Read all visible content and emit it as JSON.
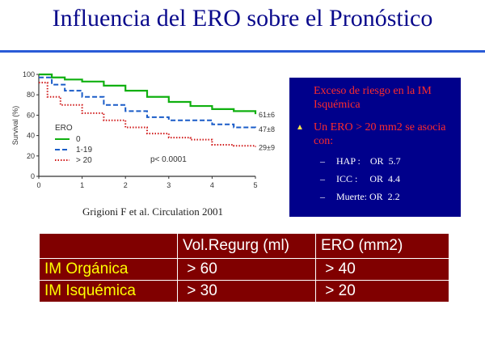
{
  "slide": {
    "title": "Influencia del ERO sobre el Pronóstico",
    "citation": "Grigioni F et al. Circulation 2001"
  },
  "chart_data": {
    "type": "line",
    "ylabel": "Survival (%)",
    "yticks": [
      "100",
      "80",
      "60",
      "40",
      "20",
      "0"
    ],
    "xticks": [
      "0",
      "1",
      "2",
      "3",
      "4",
      "5"
    ],
    "xlim": [
      0,
      5
    ],
    "ylim": [
      0,
      100
    ],
    "legend_title": "ERO",
    "pvalue_label": "p< 0.0001",
    "series": [
      {
        "name": "0",
        "style": "solid",
        "color": "#10b010",
        "end_label": "61±6",
        "points": [
          [
            0,
            100
          ],
          [
            0.3,
            97
          ],
          [
            0.6,
            95
          ],
          [
            1,
            93
          ],
          [
            1.5,
            89
          ],
          [
            2,
            84
          ],
          [
            2.5,
            78
          ],
          [
            3,
            73
          ],
          [
            3.5,
            69
          ],
          [
            4,
            66
          ],
          [
            4.5,
            64
          ],
          [
            5,
            61
          ]
        ]
      },
      {
        "name": "1-19",
        "style": "dashed",
        "color": "#1a5cc8",
        "end_label": "47±8",
        "points": [
          [
            0,
            97
          ],
          [
            0.3,
            90
          ],
          [
            0.6,
            84
          ],
          [
            1,
            78
          ],
          [
            1.5,
            70
          ],
          [
            2,
            64
          ],
          [
            2.5,
            58
          ],
          [
            3,
            55
          ],
          [
            3.5,
            55
          ],
          [
            4,
            51
          ],
          [
            4.5,
            48
          ],
          [
            5,
            47
          ]
        ]
      },
      {
        "name": "> 20",
        "style": "dotted",
        "color": "#d01a1a",
        "end_label": "29±9",
        "points": [
          [
            0,
            92
          ],
          [
            0.2,
            78
          ],
          [
            0.5,
            70
          ],
          [
            1,
            62
          ],
          [
            1.5,
            55
          ],
          [
            2,
            48
          ],
          [
            2.5,
            42
          ],
          [
            3,
            38
          ],
          [
            3.5,
            36
          ],
          [
            4,
            31
          ],
          [
            4.5,
            30
          ],
          [
            5,
            29
          ]
        ]
      }
    ]
  },
  "risk_box": {
    "heading": "Exceso de riesgo en la IM Isquémica",
    "bullet_icon": "▲",
    "lead": "Un ERO > 20 mm2  se asocia con:",
    "items": [
      {
        "dash": "–",
        "text": "HAP :    OR  5.7"
      },
      {
        "dash": "–",
        "text": "ICC :     OR  4.4"
      },
      {
        "dash": "–",
        "text": "Muerte: OR  2.2"
      }
    ]
  },
  "table": {
    "headers": [
      "",
      "Vol.Regurg (ml)",
      "ERO (mm2)"
    ],
    "rows": [
      [
        "IM Orgánica",
        " > 60",
        " > 40"
      ],
      [
        "IM Isquémica",
        " > 30",
        " > 20"
      ]
    ]
  }
}
